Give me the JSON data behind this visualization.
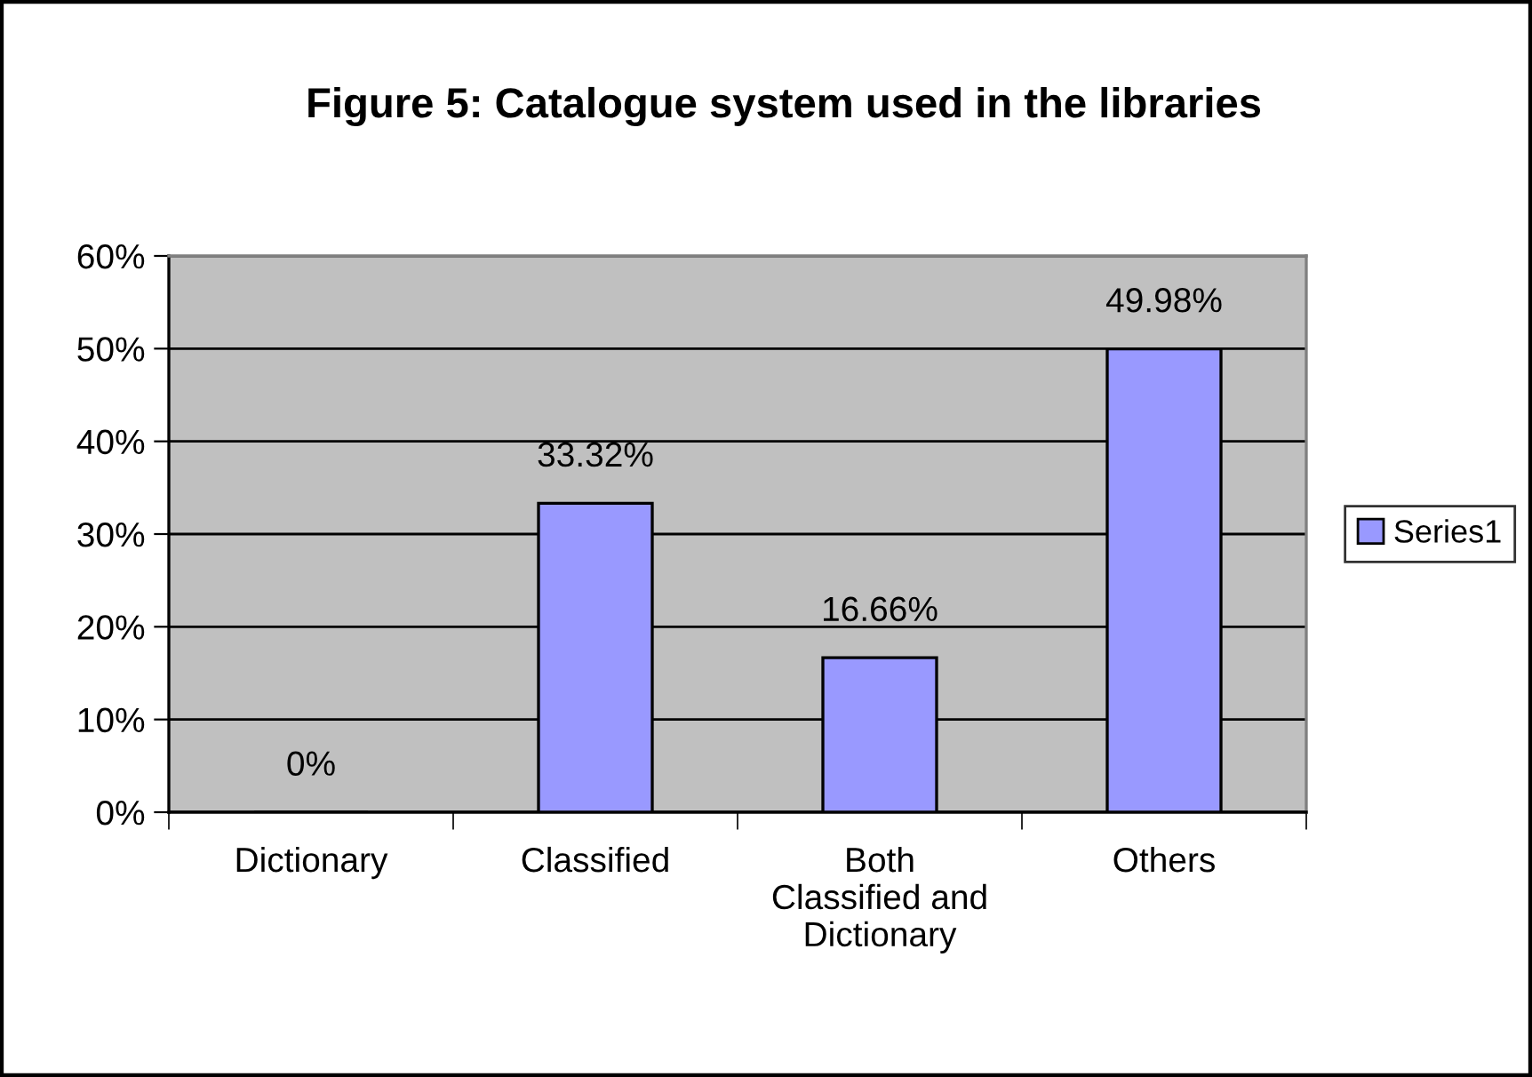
{
  "chart_data": {
    "type": "bar",
    "title": "Figure 5: Catalogue system used in the libraries",
    "categories": [
      "Dictionary",
      "Classified",
      "Both\nClassified and\nDictionary",
      "Others"
    ],
    "series": [
      {
        "name": "Series1",
        "color": "#9999ff",
        "values": [
          0,
          33.32,
          16.66,
          49.98
        ],
        "value_labels": [
          "0%",
          "33.32%",
          "16.66%",
          "49.98%"
        ]
      }
    ],
    "ylim": [
      0,
      60
    ],
    "yticks": [
      {
        "value": 0,
        "label": "0%"
      },
      {
        "value": 10,
        "label": "10%"
      },
      {
        "value": 20,
        "label": "20%"
      },
      {
        "value": 30,
        "label": "30%"
      },
      {
        "value": 40,
        "label": "40%"
      },
      {
        "value": 50,
        "label": "50%"
      },
      {
        "value": 60,
        "label": "60%"
      }
    ],
    "grid": "y",
    "legend": "right"
  }
}
